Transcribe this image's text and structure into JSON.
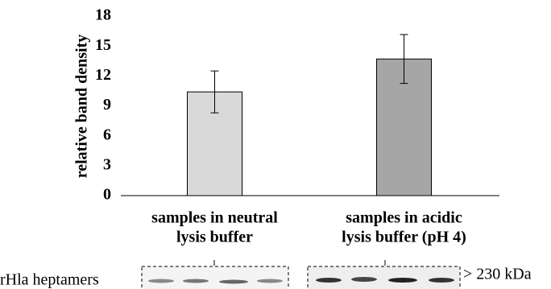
{
  "chart_data": {
    "type": "bar",
    "y_label": "relative band density",
    "categories": [
      [
        "samples in neutral",
        "lysis buffer"
      ],
      [
        "samples in acidic",
        "lysis buffer (pH 4)"
      ]
    ],
    "values": [
      10.4,
      13.7
    ],
    "errors": [
      2.1,
      2.45
    ],
    "colors": [
      "#d9d9d9",
      "#a6a6a6"
    ],
    "ylim": [
      0,
      18
    ],
    "yticks": [
      0,
      3,
      6,
      9,
      12,
      15,
      18
    ],
    "blot": {
      "row_label": "rHla heptamers",
      "size_label": "> 230 kDa"
    }
  }
}
